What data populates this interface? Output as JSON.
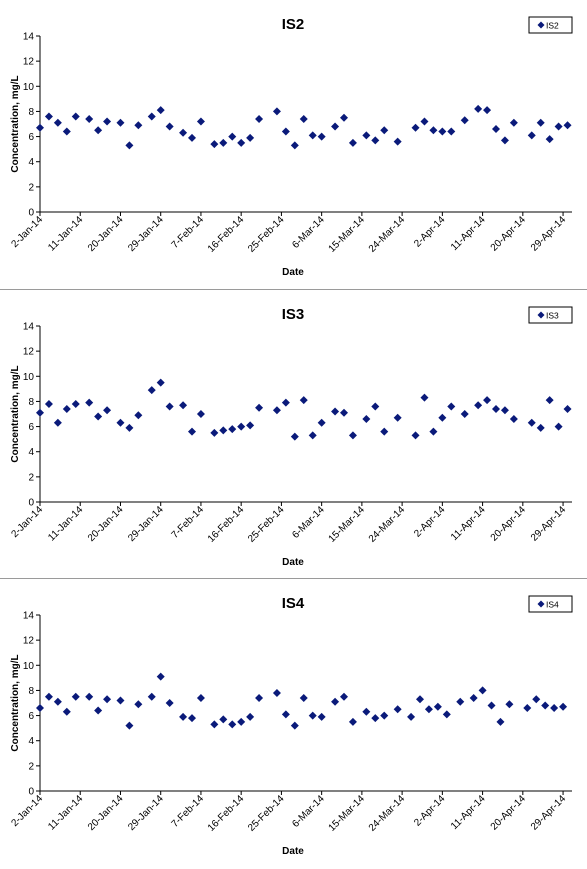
{
  "chart_data": [
    {
      "type": "scatter",
      "title": "IS2",
      "xlabel": "Date",
      "ylabel": "Concentration, mg/L",
      "ylim": [
        0,
        14
      ],
      "yticks": [
        0,
        2,
        4,
        6,
        8,
        10,
        12,
        14
      ],
      "xticks": [
        "2-Jan-14",
        "11-Jan-14",
        "20-Jan-14",
        "29-Jan-14",
        "7-Feb-14",
        "16-Feb-14",
        "25-Feb-14",
        "6-Mar-14",
        "15-Mar-14",
        "24-Mar-14",
        "2-Apr-14",
        "11-Apr-14",
        "20-Apr-14",
        "29-Apr-14"
      ],
      "xlim": [
        "2-Jan-14",
        "1-May-14"
      ],
      "legend": "top-right",
      "grid": false,
      "color": "#0a1a7a",
      "series": [
        {
          "name": "IS2",
          "points": [
            [
              "2-Jan-14",
              6.7
            ],
            [
              "4-Jan-14",
              7.6
            ],
            [
              "6-Jan-14",
              7.1
            ],
            [
              "8-Jan-14",
              6.4
            ],
            [
              "10-Jan-14",
              7.6
            ],
            [
              "13-Jan-14",
              7.4
            ],
            [
              "15-Jan-14",
              6.5
            ],
            [
              "17-Jan-14",
              7.2
            ],
            [
              "20-Jan-14",
              7.1
            ],
            [
              "22-Jan-14",
              5.3
            ],
            [
              "24-Jan-14",
              6.9
            ],
            [
              "27-Jan-14",
              7.6
            ],
            [
              "29-Jan-14",
              8.1
            ],
            [
              "31-Jan-14",
              6.8
            ],
            [
              "3-Feb-14",
              6.3
            ],
            [
              "5-Feb-14",
              5.9
            ],
            [
              "7-Feb-14",
              7.2
            ],
            [
              "10-Feb-14",
              5.4
            ],
            [
              "12-Feb-14",
              5.5
            ],
            [
              "14-Feb-14",
              6.0
            ],
            [
              "16-Feb-14",
              5.5
            ],
            [
              "18-Feb-14",
              5.9
            ],
            [
              "20-Feb-14",
              7.4
            ],
            [
              "24-Feb-14",
              8.0
            ],
            [
              "26-Feb-14",
              6.4
            ],
            [
              "28-Feb-14",
              5.3
            ],
            [
              "2-Mar-14",
              7.4
            ],
            [
              "4-Mar-14",
              6.1
            ],
            [
              "6-Mar-14",
              6.0
            ],
            [
              "9-Mar-14",
              6.8
            ],
            [
              "11-Mar-14",
              7.5
            ],
            [
              "13-Mar-14",
              5.5
            ],
            [
              "16-Mar-14",
              6.1
            ],
            [
              "18-Mar-14",
              5.7
            ],
            [
              "20-Mar-14",
              6.5
            ],
            [
              "23-Mar-14",
              5.6
            ],
            [
              "27-Mar-14",
              6.7
            ],
            [
              "29-Mar-14",
              7.2
            ],
            [
              "31-Mar-14",
              6.5
            ],
            [
              "2-Apr-14",
              6.4
            ],
            [
              "4-Apr-14",
              6.4
            ],
            [
              "7-Apr-14",
              7.3
            ],
            [
              "10-Apr-14",
              8.2
            ],
            [
              "12-Apr-14",
              8.1
            ],
            [
              "14-Apr-14",
              6.6
            ],
            [
              "16-Apr-14",
              5.7
            ],
            [
              "18-Apr-14",
              7.1
            ],
            [
              "22-Apr-14",
              6.1
            ],
            [
              "24-Apr-14",
              7.1
            ],
            [
              "26-Apr-14",
              5.8
            ],
            [
              "28-Apr-14",
              6.8
            ],
            [
              "30-Apr-14",
              6.9
            ]
          ]
        }
      ]
    },
    {
      "type": "scatter",
      "title": "IS3",
      "xlabel": "Date",
      "ylabel": "Concentration, mg/L",
      "ylim": [
        0,
        14
      ],
      "yticks": [
        0,
        2,
        4,
        6,
        8,
        10,
        12,
        14
      ],
      "xticks": [
        "2-Jan-14",
        "11-Jan-14",
        "20-Jan-14",
        "29-Jan-14",
        "7-Feb-14",
        "16-Feb-14",
        "25-Feb-14",
        "6-Mar-14",
        "15-Mar-14",
        "24-Mar-14",
        "2-Apr-14",
        "11-Apr-14",
        "20-Apr-14",
        "29-Apr-14"
      ],
      "xlim": [
        "2-Jan-14",
        "1-May-14"
      ],
      "legend": "top-right",
      "grid": false,
      "color": "#0a1a7a",
      "series": [
        {
          "name": "IS3",
          "points": [
            [
              "2-Jan-14",
              7.1
            ],
            [
              "4-Jan-14",
              7.8
            ],
            [
              "6-Jan-14",
              6.3
            ],
            [
              "8-Jan-14",
              7.4
            ],
            [
              "10-Jan-14",
              7.8
            ],
            [
              "13-Jan-14",
              7.9
            ],
            [
              "15-Jan-14",
              6.8
            ],
            [
              "17-Jan-14",
              7.3
            ],
            [
              "20-Jan-14",
              6.3
            ],
            [
              "22-Jan-14",
              5.9
            ],
            [
              "24-Jan-14",
              6.9
            ],
            [
              "27-Jan-14",
              8.9
            ],
            [
              "29-Jan-14",
              9.5
            ],
            [
              "31-Jan-14",
              7.6
            ],
            [
              "3-Feb-14",
              7.7
            ],
            [
              "5-Feb-14",
              5.6
            ],
            [
              "7-Feb-14",
              7.0
            ],
            [
              "10-Feb-14",
              5.5
            ],
            [
              "12-Feb-14",
              5.7
            ],
            [
              "14-Feb-14",
              5.8
            ],
            [
              "16-Feb-14",
              6.0
            ],
            [
              "18-Feb-14",
              6.1
            ],
            [
              "20-Feb-14",
              7.5
            ],
            [
              "24-Feb-14",
              7.3
            ],
            [
              "26-Feb-14",
              7.9
            ],
            [
              "28-Feb-14",
              5.2
            ],
            [
              "2-Mar-14",
              8.1
            ],
            [
              "4-Mar-14",
              5.3
            ],
            [
              "6-Mar-14",
              6.3
            ],
            [
              "9-Mar-14",
              7.2
            ],
            [
              "11-Mar-14",
              7.1
            ],
            [
              "13-Mar-14",
              5.3
            ],
            [
              "16-Mar-14",
              6.6
            ],
            [
              "18-Mar-14",
              7.6
            ],
            [
              "20-Mar-14",
              5.6
            ],
            [
              "23-Mar-14",
              6.7
            ],
            [
              "27-Mar-14",
              5.3
            ],
            [
              "29-Mar-14",
              8.3
            ],
            [
              "31-Mar-14",
              5.6
            ],
            [
              "2-Apr-14",
              6.7
            ],
            [
              "4-Apr-14",
              7.6
            ],
            [
              "7-Apr-14",
              7.0
            ],
            [
              "10-Apr-14",
              7.7
            ],
            [
              "12-Apr-14",
              8.1
            ],
            [
              "14-Apr-14",
              7.4
            ],
            [
              "16-Apr-14",
              7.3
            ],
            [
              "18-Apr-14",
              6.6
            ],
            [
              "22-Apr-14",
              6.3
            ],
            [
              "24-Apr-14",
              5.9
            ],
            [
              "26-Apr-14",
              8.1
            ],
            [
              "28-Apr-14",
              6.0
            ],
            [
              "30-Apr-14",
              7.4
            ]
          ]
        }
      ]
    },
    {
      "type": "scatter",
      "title": "IS4",
      "xlabel": "Date",
      "ylabel": "Concentration, mg/L",
      "ylim": [
        0,
        14
      ],
      "yticks": [
        0,
        2,
        4,
        6,
        8,
        10,
        12,
        14
      ],
      "xticks": [
        "2-Jan-14",
        "11-Jan-14",
        "20-Jan-14",
        "29-Jan-14",
        "7-Feb-14",
        "16-Feb-14",
        "25-Feb-14",
        "6-Mar-14",
        "15-Mar-14",
        "24-Mar-14",
        "2-Apr-14",
        "11-Apr-14",
        "20-Apr-14",
        "29-Apr-14"
      ],
      "xlim": [
        "2-Jan-14",
        "1-May-14"
      ],
      "legend": "top-right",
      "grid": false,
      "color": "#0a1a7a",
      "series": [
        {
          "name": "IS4",
          "points": [
            [
              "2-Jan-14",
              6.6
            ],
            [
              "4-Jan-14",
              7.5
            ],
            [
              "6-Jan-14",
              7.1
            ],
            [
              "8-Jan-14",
              6.3
            ],
            [
              "10-Jan-14",
              7.5
            ],
            [
              "13-Jan-14",
              7.5
            ],
            [
              "15-Jan-14",
              6.4
            ],
            [
              "17-Jan-14",
              7.3
            ],
            [
              "20-Jan-14",
              7.2
            ],
            [
              "22-Jan-14",
              5.2
            ],
            [
              "24-Jan-14",
              6.9
            ],
            [
              "27-Jan-14",
              7.5
            ],
            [
              "29-Jan-14",
              9.1
            ],
            [
              "31-Jan-14",
              7.0
            ],
            [
              "3-Feb-14",
              5.9
            ],
            [
              "5-Feb-14",
              5.8
            ],
            [
              "7-Feb-14",
              7.4
            ],
            [
              "10-Feb-14",
              5.3
            ],
            [
              "12-Feb-14",
              5.7
            ],
            [
              "14-Feb-14",
              5.3
            ],
            [
              "16-Feb-14",
              5.5
            ],
            [
              "18-Feb-14",
              5.9
            ],
            [
              "20-Feb-14",
              7.4
            ],
            [
              "24-Feb-14",
              7.8
            ],
            [
              "26-Feb-14",
              6.1
            ],
            [
              "28-Feb-14",
              5.2
            ],
            [
              "2-Mar-14",
              7.4
            ],
            [
              "4-Mar-14",
              6.0
            ],
            [
              "6-Mar-14",
              5.9
            ],
            [
              "9-Mar-14",
              7.1
            ],
            [
              "11-Mar-14",
              7.5
            ],
            [
              "13-Mar-14",
              5.5
            ],
            [
              "16-Mar-14",
              6.3
            ],
            [
              "18-Mar-14",
              5.8
            ],
            [
              "20-Mar-14",
              6.0
            ],
            [
              "23-Mar-14",
              6.5
            ],
            [
              "26-Mar-14",
              5.9
            ],
            [
              "28-Mar-14",
              7.3
            ],
            [
              "30-Mar-14",
              6.5
            ],
            [
              "1-Apr-14",
              6.7
            ],
            [
              "3-Apr-14",
              6.1
            ],
            [
              "6-Apr-14",
              7.1
            ],
            [
              "9-Apr-14",
              7.4
            ],
            [
              "11-Apr-14",
              8.0
            ],
            [
              "13-Apr-14",
              6.8
            ],
            [
              "15-Apr-14",
              5.5
            ],
            [
              "17-Apr-14",
              6.9
            ],
            [
              "21-Apr-14",
              6.6
            ],
            [
              "23-Apr-14",
              7.3
            ],
            [
              "25-Apr-14",
              6.8
            ],
            [
              "27-Apr-14",
              6.6
            ],
            [
              "29-Apr-14",
              6.7
            ]
          ]
        }
      ]
    }
  ]
}
